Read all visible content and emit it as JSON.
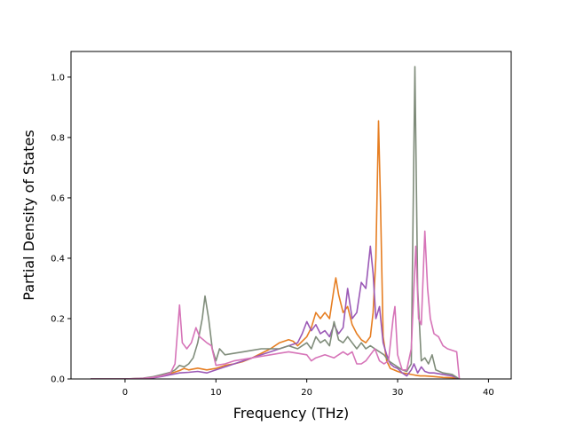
{
  "chart_data": {
    "type": "line",
    "title": "",
    "xlabel": "Frequency (THz)",
    "ylabel": "Partial Density of States",
    "xlim": [
      -5.95,
      42.5
    ],
    "ylim": [
      0,
      1.085
    ],
    "xticks": [
      0,
      10,
      20,
      30,
      40
    ],
    "yticks": [
      0.0,
      0.2,
      0.4,
      0.6,
      0.8,
      1.0
    ],
    "xtick_labels": [
      "0",
      "10",
      "20",
      "30",
      "40"
    ],
    "ytick_labels": [
      "0.0",
      "0.2",
      "0.4",
      "0.6",
      "0.8",
      "1.0"
    ],
    "grid": false,
    "legend": "none",
    "series": [
      {
        "color": "#e67e22",
        "points": [
          [
            -3.8,
            0
          ],
          [
            0,
            0
          ],
          [
            2,
            0.002
          ],
          [
            3,
            0.005
          ],
          [
            4,
            0.01
          ],
          [
            5,
            0.018
          ],
          [
            6,
            0.028
          ],
          [
            6.5,
            0.035
          ],
          [
            7,
            0.03
          ],
          [
            8,
            0.036
          ],
          [
            9,
            0.03
          ],
          [
            10,
            0.035
          ],
          [
            11,
            0.045
          ],
          [
            12,
            0.05
          ],
          [
            13,
            0.058
          ],
          [
            14,
            0.07
          ],
          [
            15,
            0.085
          ],
          [
            16,
            0.1
          ],
          [
            17,
            0.12
          ],
          [
            18,
            0.13
          ],
          [
            18.5,
            0.125
          ],
          [
            19,
            0.11
          ],
          [
            20,
            0.14
          ],
          [
            20.5,
            0.17
          ],
          [
            21,
            0.22
          ],
          [
            21.5,
            0.2
          ],
          [
            22,
            0.22
          ],
          [
            22.5,
            0.2
          ],
          [
            23,
            0.3
          ],
          [
            23.2,
            0.335
          ],
          [
            23.5,
            0.28
          ],
          [
            24,
            0.22
          ],
          [
            24.5,
            0.24
          ],
          [
            25,
            0.18
          ],
          [
            25.5,
            0.15
          ],
          [
            26,
            0.13
          ],
          [
            26.5,
            0.12
          ],
          [
            27,
            0.14
          ],
          [
            27.3,
            0.22
          ],
          [
            27.6,
            0.4
          ],
          [
            27.9,
            0.855
          ],
          [
            28.1,
            0.6
          ],
          [
            28.4,
            0.14
          ],
          [
            28.8,
            0.06
          ],
          [
            29.2,
            0.035
          ],
          [
            29.6,
            0.03
          ],
          [
            30,
            0.025
          ],
          [
            30.5,
            0.02
          ],
          [
            31,
            0.018
          ],
          [
            31.5,
            0.015
          ],
          [
            32,
            0.012
          ],
          [
            32.5,
            0.01
          ],
          [
            33,
            0.01
          ],
          [
            34,
            0.008
          ],
          [
            35,
            0.005
          ],
          [
            36,
            0.004
          ],
          [
            36.8,
            0
          ]
        ]
      },
      {
        "color": "#9b59b6",
        "points": [
          [
            -3.8,
            0
          ],
          [
            0,
            0
          ],
          [
            2,
            0.001
          ],
          [
            3,
            0.003
          ],
          [
            4,
            0.008
          ],
          [
            5,
            0.014
          ],
          [
            6,
            0.02
          ],
          [
            7,
            0.022
          ],
          [
            8,
            0.025
          ],
          [
            9,
            0.02
          ],
          [
            10,
            0.03
          ],
          [
            11,
            0.04
          ],
          [
            12,
            0.05
          ],
          [
            13,
            0.06
          ],
          [
            14,
            0.07
          ],
          [
            15,
            0.08
          ],
          [
            16,
            0.09
          ],
          [
            17,
            0.1
          ],
          [
            18,
            0.11
          ],
          [
            19,
            0.12
          ],
          [
            19.5,
            0.15
          ],
          [
            20,
            0.19
          ],
          [
            20.5,
            0.16
          ],
          [
            21,
            0.18
          ],
          [
            21.5,
            0.15
          ],
          [
            22,
            0.16
          ],
          [
            22.5,
            0.14
          ],
          [
            23,
            0.18
          ],
          [
            23.5,
            0.15
          ],
          [
            24,
            0.17
          ],
          [
            24.5,
            0.3
          ],
          [
            25,
            0.2
          ],
          [
            25.5,
            0.22
          ],
          [
            26,
            0.32
          ],
          [
            26.5,
            0.3
          ],
          [
            27,
            0.44
          ],
          [
            27.3,
            0.35
          ],
          [
            27.6,
            0.2
          ],
          [
            28,
            0.24
          ],
          [
            28.4,
            0.12
          ],
          [
            28.8,
            0.08
          ],
          [
            29.2,
            0.05
          ],
          [
            29.6,
            0.04
          ],
          [
            30,
            0.035
          ],
          [
            30.5,
            0.02
          ],
          [
            31,
            0.01
          ],
          [
            31.5,
            0.03
          ],
          [
            31.8,
            0.05
          ],
          [
            32.2,
            0.02
          ],
          [
            32.6,
            0.04
          ],
          [
            33,
            0.025
          ],
          [
            33.5,
            0.02
          ],
          [
            34,
            0.02
          ],
          [
            35,
            0.015
          ],
          [
            36,
            0.01
          ],
          [
            36.8,
            0
          ]
        ]
      },
      {
        "color": "#7f8c7a",
        "points": [
          [
            -3.8,
            0
          ],
          [
            0,
            0
          ],
          [
            2,
            0.003
          ],
          [
            3,
            0.007
          ],
          [
            4,
            0.014
          ],
          [
            5,
            0.022
          ],
          [
            5.5,
            0.03
          ],
          [
            6,
            0.045
          ],
          [
            6.5,
            0.04
          ],
          [
            7,
            0.05
          ],
          [
            7.5,
            0.07
          ],
          [
            8,
            0.12
          ],
          [
            8.5,
            0.2
          ],
          [
            8.8,
            0.275
          ],
          [
            9.2,
            0.2
          ],
          [
            9.6,
            0.1
          ],
          [
            10,
            0.06
          ],
          [
            10.4,
            0.1
          ],
          [
            11,
            0.08
          ],
          [
            12,
            0.085
          ],
          [
            13,
            0.09
          ],
          [
            14,
            0.095
          ],
          [
            15,
            0.1
          ],
          [
            16,
            0.1
          ],
          [
            17,
            0.1
          ],
          [
            18,
            0.11
          ],
          [
            19,
            0.1
          ],
          [
            19.5,
            0.11
          ],
          [
            20,
            0.12
          ],
          [
            20.5,
            0.1
          ],
          [
            21,
            0.14
          ],
          [
            21.5,
            0.12
          ],
          [
            22,
            0.13
          ],
          [
            22.5,
            0.11
          ],
          [
            23,
            0.19
          ],
          [
            23.5,
            0.13
          ],
          [
            24,
            0.12
          ],
          [
            24.5,
            0.14
          ],
          [
            25,
            0.12
          ],
          [
            25.5,
            0.1
          ],
          [
            26,
            0.12
          ],
          [
            26.5,
            0.1
          ],
          [
            27,
            0.11
          ],
          [
            27.5,
            0.1
          ],
          [
            28,
            0.09
          ],
          [
            28.5,
            0.08
          ],
          [
            29,
            0.06
          ],
          [
            29.5,
            0.05
          ],
          [
            30,
            0.04
          ],
          [
            30.5,
            0.03
          ],
          [
            31,
            0.025
          ],
          [
            31.5,
            0.05
          ],
          [
            31.9,
            1.035
          ],
          [
            32.2,
            0.3
          ],
          [
            32.6,
            0.06
          ],
          [
            33,
            0.07
          ],
          [
            33.4,
            0.05
          ],
          [
            33.8,
            0.08
          ],
          [
            34.2,
            0.03
          ],
          [
            35,
            0.02
          ],
          [
            36,
            0.015
          ],
          [
            36.8,
            0
          ]
        ]
      },
      {
        "color": "#d674b8",
        "points": [
          [
            -3.8,
            0
          ],
          [
            0,
            0
          ],
          [
            2,
            0.002
          ],
          [
            3,
            0.005
          ],
          [
            4,
            0.01
          ],
          [
            5,
            0.02
          ],
          [
            5.5,
            0.05
          ],
          [
            6,
            0.245
          ],
          [
            6.3,
            0.12
          ],
          [
            6.8,
            0.1
          ],
          [
            7.3,
            0.12
          ],
          [
            7.8,
            0.17
          ],
          [
            8.2,
            0.14
          ],
          [
            8.6,
            0.13
          ],
          [
            9,
            0.12
          ],
          [
            9.5,
            0.11
          ],
          [
            10,
            0.045
          ],
          [
            11,
            0.05
          ],
          [
            12,
            0.06
          ],
          [
            13,
            0.065
          ],
          [
            14,
            0.07
          ],
          [
            15,
            0.075
          ],
          [
            16,
            0.08
          ],
          [
            17,
            0.085
          ],
          [
            18,
            0.09
          ],
          [
            19,
            0.085
          ],
          [
            20,
            0.08
          ],
          [
            20.5,
            0.06
          ],
          [
            21,
            0.07
          ],
          [
            22,
            0.08
          ],
          [
            23,
            0.07
          ],
          [
            24,
            0.09
          ],
          [
            24.5,
            0.08
          ],
          [
            25,
            0.09
          ],
          [
            25.5,
            0.05
          ],
          [
            26,
            0.05
          ],
          [
            26.5,
            0.06
          ],
          [
            27,
            0.08
          ],
          [
            27.5,
            0.1
          ],
          [
            28,
            0.06
          ],
          [
            28.5,
            0.05
          ],
          [
            29,
            0.06
          ],
          [
            29.5,
            0.2
          ],
          [
            29.7,
            0.24
          ],
          [
            30,
            0.08
          ],
          [
            30.5,
            0.03
          ],
          [
            31,
            0.03
          ],
          [
            31.5,
            0.1
          ],
          [
            32,
            0.44
          ],
          [
            32.3,
            0.2
          ],
          [
            32.6,
            0.18
          ],
          [
            33,
            0.49
          ],
          [
            33.3,
            0.3
          ],
          [
            33.6,
            0.2
          ],
          [
            34,
            0.15
          ],
          [
            34.5,
            0.14
          ],
          [
            35,
            0.11
          ],
          [
            35.5,
            0.1
          ],
          [
            36,
            0.095
          ],
          [
            36.5,
            0.09
          ],
          [
            36.8,
            0
          ]
        ]
      }
    ]
  }
}
